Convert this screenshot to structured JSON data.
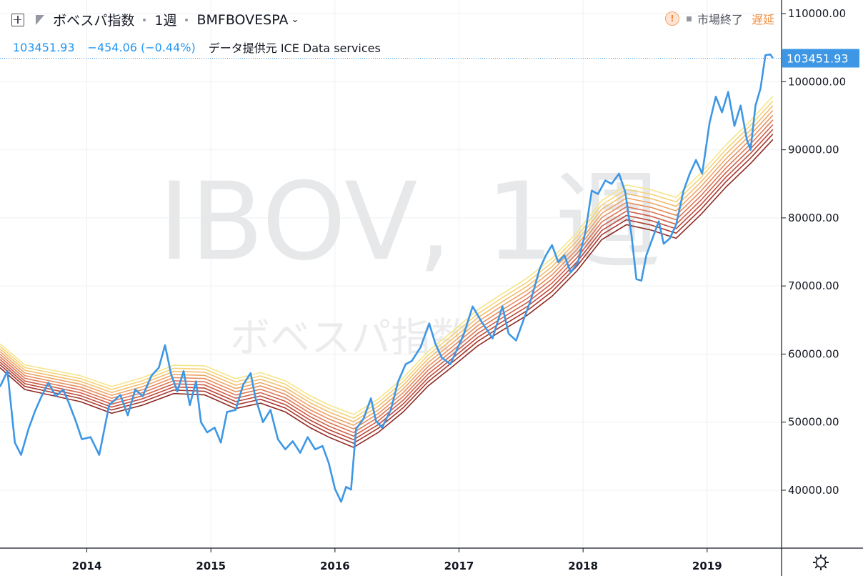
{
  "header": {
    "title": "ボベスパ指数",
    "interval": "1週",
    "symbol": "BMFBOVESPA",
    "last_value": "103451.93",
    "change": "−454.06 (−0.44%)",
    "provider": "データ提供元 ICE Data services",
    "market_status": "市場終了",
    "delay_label": "遅延",
    "warn_icon": "exclamation-icon",
    "flag_icon": "flag-icon",
    "expand_icon": "expand-icon"
  },
  "watermark": {
    "main": "IBOV, 1週",
    "sub": "ボベスパ指数"
  },
  "price_tag": "103451.93",
  "settings_icon": "gear-icon",
  "colors": {
    "price_line": "#3d97e5",
    "price_tag_bg": "#3d97e5",
    "ma_ribbon": [
      "#f5e58a",
      "#f5d277",
      "#f3bd6c",
      "#eea566",
      "#e78d5d",
      "#dd7654",
      "#cf5f48",
      "#bd4a3a",
      "#a8372d",
      "#8e2a22"
    ]
  },
  "chart_data": {
    "type": "line",
    "title": "",
    "xlabel": "",
    "ylabel": "",
    "ylim": [
      31500,
      112000
    ],
    "xlim": [
      2013.3,
      2019.6
    ],
    "y_ticks": [
      "110000.00",
      "100000.00",
      "90000.00",
      "80000.00",
      "70000.00",
      "60000.00",
      "50000.00",
      "40000.00"
    ],
    "y_tick_values": [
      110000,
      100000,
      90000,
      80000,
      70000,
      60000,
      50000,
      40000
    ],
    "x_ticks": [
      "2014",
      "2015",
      "2016",
      "2017",
      "2018",
      "2019"
    ],
    "x_tick_values": [
      2014,
      2015,
      2016,
      2017,
      2018,
      2019
    ],
    "grid": true,
    "last_price_line": 103451.93,
    "series": [
      {
        "name": "BMFBOVESPA",
        "points": [
          [
            2013.3,
            55200
          ],
          [
            2013.36,
            57500
          ],
          [
            2013.42,
            47000
          ],
          [
            2013.47,
            45200
          ],
          [
            2013.53,
            49000
          ],
          [
            2013.58,
            51500
          ],
          [
            2013.63,
            53600
          ],
          [
            2013.69,
            55800
          ],
          [
            2013.75,
            53800
          ],
          [
            2013.81,
            54800
          ],
          [
            2013.86,
            52600
          ],
          [
            2013.91,
            50200
          ],
          [
            2013.96,
            47500
          ],
          [
            2014.03,
            47800
          ],
          [
            2014.1,
            45200
          ],
          [
            2014.18,
            52500
          ],
          [
            2014.27,
            54000
          ],
          [
            2014.33,
            51000
          ],
          [
            2014.39,
            54800
          ],
          [
            2014.45,
            53800
          ],
          [
            2014.52,
            56800
          ],
          [
            2014.58,
            58000
          ],
          [
            2014.63,
            61300
          ],
          [
            2014.68,
            57000
          ],
          [
            2014.73,
            54500
          ],
          [
            2014.78,
            57500
          ],
          [
            2014.83,
            52500
          ],
          [
            2014.88,
            56000
          ],
          [
            2014.92,
            50000
          ],
          [
            2014.97,
            48500
          ],
          [
            2015.03,
            49200
          ],
          [
            2015.08,
            47000
          ],
          [
            2015.13,
            51500
          ],
          [
            2015.2,
            51800
          ],
          [
            2015.26,
            55500
          ],
          [
            2015.32,
            57200
          ],
          [
            2015.36,
            53500
          ],
          [
            2015.42,
            50000
          ],
          [
            2015.48,
            51800
          ],
          [
            2015.54,
            47500
          ],
          [
            2015.6,
            46000
          ],
          [
            2015.66,
            47200
          ],
          [
            2015.72,
            45500
          ],
          [
            2015.78,
            47800
          ],
          [
            2015.84,
            46000
          ],
          [
            2015.9,
            46500
          ],
          [
            2015.95,
            44000
          ],
          [
            2016.0,
            40200
          ],
          [
            2016.05,
            38300
          ],
          [
            2016.09,
            40500
          ],
          [
            2016.13,
            40100
          ],
          [
            2016.17,
            49000
          ],
          [
            2016.23,
            50500
          ],
          [
            2016.29,
            53500
          ],
          [
            2016.33,
            50200
          ],
          [
            2016.38,
            49200
          ],
          [
            2016.45,
            51800
          ],
          [
            2016.51,
            56000
          ],
          [
            2016.57,
            58500
          ],
          [
            2016.62,
            59000
          ],
          [
            2016.69,
            61000
          ],
          [
            2016.76,
            64500
          ],
          [
            2016.81,
            61500
          ],
          [
            2016.86,
            59500
          ],
          [
            2016.93,
            58500
          ],
          [
            2016.98,
            60500
          ],
          [
            2017.04,
            63000
          ],
          [
            2017.11,
            67000
          ],
          [
            2017.18,
            64800
          ],
          [
            2017.27,
            62300
          ],
          [
            2017.35,
            67000
          ],
          [
            2017.4,
            63000
          ],
          [
            2017.46,
            62000
          ],
          [
            2017.52,
            65000
          ],
          [
            2017.58,
            68000
          ],
          [
            2017.65,
            72500
          ],
          [
            2017.7,
            74500
          ],
          [
            2017.75,
            76000
          ],
          [
            2017.8,
            73500
          ],
          [
            2017.85,
            74500
          ],
          [
            2017.9,
            72000
          ],
          [
            2017.96,
            73500
          ],
          [
            2018.02,
            78000
          ],
          [
            2018.07,
            84000
          ],
          [
            2018.12,
            83500
          ],
          [
            2018.18,
            85500
          ],
          [
            2018.23,
            85000
          ],
          [
            2018.29,
            86500
          ],
          [
            2018.34,
            83800
          ],
          [
            2018.39,
            77500
          ],
          [
            2018.43,
            71000
          ],
          [
            2018.47,
            70800
          ],
          [
            2018.51,
            74500
          ],
          [
            2018.56,
            77000
          ],
          [
            2018.61,
            79500
          ],
          [
            2018.65,
            76200
          ],
          [
            2018.7,
            77000
          ],
          [
            2018.75,
            79000
          ],
          [
            2018.81,
            84000
          ],
          [
            2018.86,
            86500
          ],
          [
            2018.91,
            88500
          ],
          [
            2018.96,
            86500
          ],
          [
            2019.02,
            94000
          ],
          [
            2019.07,
            97800
          ],
          [
            2019.12,
            95500
          ],
          [
            2019.17,
            98500
          ],
          [
            2019.22,
            93500
          ],
          [
            2019.27,
            96500
          ],
          [
            2019.32,
            91500
          ],
          [
            2019.35,
            90000
          ],
          [
            2019.39,
            96500
          ],
          [
            2019.43,
            99000
          ],
          [
            2019.47,
            103900
          ],
          [
            2019.51,
            104000
          ],
          [
            2019.53,
            103451.93
          ]
        ]
      }
    ],
    "ribbon": {
      "name": "MA Ribbon",
      "points": [
        [
          2013.3,
          58000
        ],
        [
          2013.5,
          54800
        ],
        [
          2013.75,
          53800
        ],
        [
          2013.95,
          53000
        ],
        [
          2014.2,
          51300
        ],
        [
          2014.45,
          52500
        ],
        [
          2014.7,
          54200
        ],
        [
          2014.95,
          54000
        ],
        [
          2015.2,
          52000
        ],
        [
          2015.4,
          52800
        ],
        [
          2015.6,
          51500
        ],
        [
          2015.8,
          49200
        ],
        [
          2015.95,
          47800
        ],
        [
          2016.15,
          46300
        ],
        [
          2016.35,
          48500
        ],
        [
          2016.55,
          51500
        ],
        [
          2016.75,
          55300
        ],
        [
          2016.95,
          58200
        ],
        [
          2017.15,
          61200
        ],
        [
          2017.35,
          63500
        ],
        [
          2017.55,
          65700
        ],
        [
          2017.75,
          68500
        ],
        [
          2017.95,
          72200
        ],
        [
          2018.15,
          76800
        ],
        [
          2018.35,
          79000
        ],
        [
          2018.55,
          78200
        ],
        [
          2018.75,
          77000
        ],
        [
          2018.95,
          80500
        ],
        [
          2019.15,
          84500
        ],
        [
          2019.35,
          88000
        ],
        [
          2019.53,
          91500
        ]
      ],
      "offsets": [
        6400,
        5700,
        5000,
        4300,
        3600,
        2900,
        2200,
        1500,
        800,
        0
      ]
    }
  }
}
